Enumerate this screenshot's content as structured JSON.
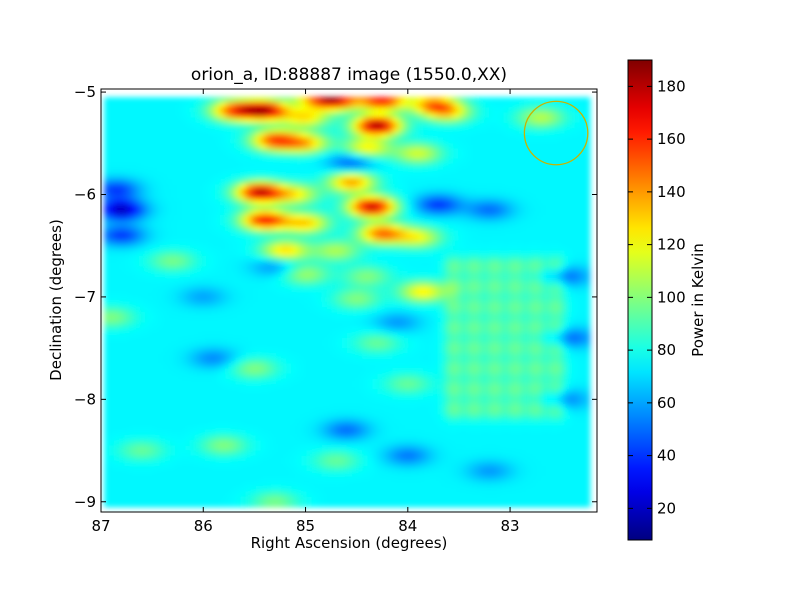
{
  "chart_data": {
    "type": "heatmap",
    "title": "orion_a, ID:88887 image (1550.0,XX)",
    "xlabel": "Right Ascension (degrees)",
    "ylabel": "Declination (degrees)",
    "xlim": [
      87.0,
      82.15
    ],
    "ylim": [
      -9.1,
      -4.97
    ],
    "x_ticks": [
      87,
      86,
      85,
      84,
      83
    ],
    "y_ticks": [
      -5,
      -6,
      -7,
      -8,
      -9
    ],
    "x_tick_labels": [
      "87",
      "86",
      "85",
      "84",
      "83"
    ],
    "y_tick_labels": [
      "−5",
      "−6",
      "−7",
      "−8",
      "−9"
    ],
    "colorbar": {
      "label": "Power in Kelvin",
      "min": 8,
      "max": 190,
      "ticks": [
        20,
        40,
        60,
        80,
        100,
        120,
        140,
        160,
        180
      ],
      "tick_labels": [
        "20",
        "40",
        "60",
        "80",
        "100",
        "120",
        "140",
        "160",
        "180"
      ],
      "colormap": "jet"
    },
    "background_level": 75,
    "map_extent": {
      "ra": [
        86.97,
        82.22
      ],
      "dec": [
        -9.05,
        -5.05
      ]
    },
    "features": [
      {
        "ra": 85.4,
        "dec": -5.18,
        "value": 178,
        "kind": "peak"
      },
      {
        "ra": 84.7,
        "dec": -5.08,
        "value": 160,
        "kind": "peak"
      },
      {
        "ra": 84.25,
        "dec": -5.08,
        "value": 165,
        "kind": "peak"
      },
      {
        "ra": 84.3,
        "dec": -5.33,
        "value": 185,
        "kind": "peak"
      },
      {
        "ra": 83.75,
        "dec": -5.12,
        "value": 140,
        "kind": "peak"
      },
      {
        "ra": 85.7,
        "dec": -5.18,
        "value": 150,
        "kind": "peak"
      },
      {
        "ra": 85.0,
        "dec": -5.25,
        "value": 125,
        "kind": "peak"
      },
      {
        "ra": 85.3,
        "dec": -5.47,
        "value": 155,
        "kind": "peak"
      },
      {
        "ra": 85.0,
        "dec": -5.5,
        "value": 130,
        "kind": "peak"
      },
      {
        "ra": 84.4,
        "dec": -5.55,
        "value": 125,
        "kind": "peak"
      },
      {
        "ra": 83.9,
        "dec": -5.6,
        "value": 115,
        "kind": "peak"
      },
      {
        "ra": 85.45,
        "dec": -5.98,
        "value": 178,
        "kind": "peak"
      },
      {
        "ra": 85.1,
        "dec": -6.0,
        "value": 120,
        "kind": "peak"
      },
      {
        "ra": 84.55,
        "dec": -5.88,
        "value": 140,
        "kind": "peak"
      },
      {
        "ra": 84.35,
        "dec": -6.12,
        "value": 178,
        "kind": "peak"
      },
      {
        "ra": 85.4,
        "dec": -6.25,
        "value": 165,
        "kind": "peak"
      },
      {
        "ra": 85.0,
        "dec": -6.28,
        "value": 130,
        "kind": "peak"
      },
      {
        "ra": 84.25,
        "dec": -6.38,
        "value": 150,
        "kind": "peak"
      },
      {
        "ra": 83.9,
        "dec": -6.42,
        "value": 118,
        "kind": "peak"
      },
      {
        "ra": 85.2,
        "dec": -6.55,
        "value": 130,
        "kind": "peak"
      },
      {
        "ra": 84.7,
        "dec": -6.55,
        "value": 108,
        "kind": "peak"
      },
      {
        "ra": 85.0,
        "dec": -6.78,
        "value": 105,
        "kind": "peak"
      },
      {
        "ra": 84.4,
        "dec": -6.8,
        "value": 100,
        "kind": "peak"
      },
      {
        "ra": 83.85,
        "dec": -6.95,
        "value": 125,
        "kind": "peak"
      },
      {
        "ra": 84.5,
        "dec": -7.02,
        "value": 100,
        "kind": "peak"
      },
      {
        "ra": 86.9,
        "dec": -7.2,
        "value": 100,
        "kind": "peak"
      },
      {
        "ra": 86.3,
        "dec": -6.65,
        "value": 98,
        "kind": "peak"
      },
      {
        "ra": 84.3,
        "dec": -7.45,
        "value": 95,
        "kind": "peak"
      },
      {
        "ra": 85.5,
        "dec": -7.7,
        "value": 100,
        "kind": "peak"
      },
      {
        "ra": 84.0,
        "dec": -7.85,
        "value": 95,
        "kind": "peak"
      },
      {
        "ra": 85.8,
        "dec": -8.45,
        "value": 100,
        "kind": "peak"
      },
      {
        "ra": 84.7,
        "dec": -8.6,
        "value": 95,
        "kind": "peak"
      },
      {
        "ra": 86.6,
        "dec": -8.5,
        "value": 95,
        "kind": "peak"
      },
      {
        "ra": 85.3,
        "dec": -9.0,
        "value": 98,
        "kind": "peak"
      },
      {
        "ra": 84.9,
        "dec": -5.05,
        "value": 125,
        "kind": "peak"
      },
      {
        "ra": 83.6,
        "dec": -5.2,
        "value": 120,
        "kind": "peak"
      },
      {
        "ra": 82.7,
        "dec": -5.25,
        "value": 110,
        "kind": "peak"
      },
      {
        "ra": 86.8,
        "dec": -6.15,
        "value": 18,
        "kind": "dip"
      },
      {
        "ra": 86.85,
        "dec": -5.95,
        "value": 40,
        "kind": "dip"
      },
      {
        "ra": 86.8,
        "dec": -6.4,
        "value": 40,
        "kind": "dip"
      },
      {
        "ra": 84.55,
        "dec": -5.68,
        "value": 45,
        "kind": "dip"
      },
      {
        "ra": 83.7,
        "dec": -6.1,
        "value": 40,
        "kind": "dip"
      },
      {
        "ra": 83.2,
        "dec": -6.15,
        "value": 50,
        "kind": "dip"
      },
      {
        "ra": 82.45,
        "dec": -6.8,
        "value": 50,
        "kind": "dip"
      },
      {
        "ra": 82.4,
        "dec": -7.4,
        "value": 50,
        "kind": "dip"
      },
      {
        "ra": 82.45,
        "dec": -8.0,
        "value": 55,
        "kind": "dip"
      },
      {
        "ra": 84.1,
        "dec": -7.25,
        "value": 58,
        "kind": "dip"
      },
      {
        "ra": 85.9,
        "dec": -7.6,
        "value": 55,
        "kind": "dip"
      },
      {
        "ra": 86.0,
        "dec": -7.0,
        "value": 60,
        "kind": "dip"
      },
      {
        "ra": 84.6,
        "dec": -8.3,
        "value": 50,
        "kind": "dip"
      },
      {
        "ra": 84.0,
        "dec": -8.55,
        "value": 52,
        "kind": "dip"
      },
      {
        "ra": 83.2,
        "dec": -8.7,
        "value": 58,
        "kind": "dip"
      },
      {
        "ra": 85.3,
        "dec": -6.7,
        "value": 55,
        "kind": "dip"
      }
    ],
    "grid_spots": {
      "ra_values": [
        83.55,
        83.35,
        83.15,
        82.95,
        82.75,
        82.55
      ],
      "dec_values": [
        -6.7,
        -6.9,
        -7.1,
        -7.3,
        -7.5,
        -7.7,
        -7.9,
        -8.1
      ],
      "value": 95
    },
    "annotation": {
      "shape": "circle",
      "ra": 82.55,
      "dec": -5.4,
      "radius_deg": 0.31,
      "color": "#c8b400"
    }
  }
}
